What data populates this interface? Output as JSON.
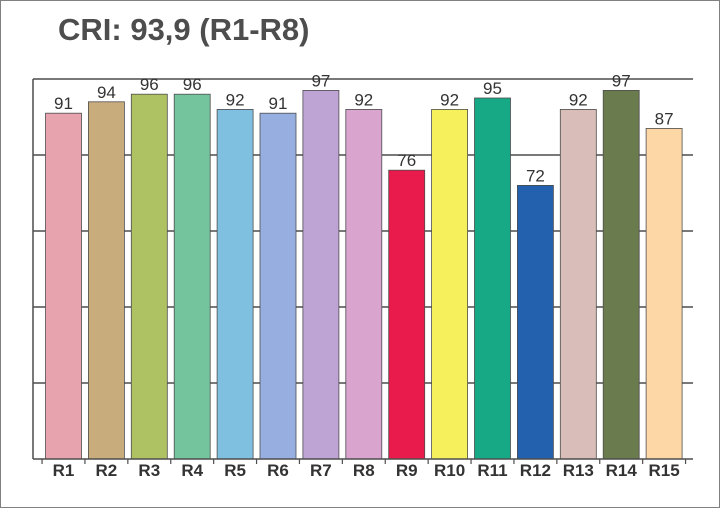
{
  "chart_data": {
    "type": "bar",
    "title": "CRI: 93,9 (R1-R8)",
    "xlabel": "",
    "ylabel": "",
    "ylim": [
      0,
      100
    ],
    "grid": true,
    "categories": [
      "R1",
      "R2",
      "R3",
      "R4",
      "R5",
      "R6",
      "R7",
      "R8",
      "R9",
      "R10",
      "R11",
      "R12",
      "R13",
      "R14",
      "R15"
    ],
    "values": [
      91,
      94,
      96,
      96,
      92,
      91,
      97,
      92,
      76,
      92,
      95,
      72,
      92,
      97,
      87
    ],
    "colors": [
      "#e8a4ae",
      "#c9ac7c",
      "#aec264",
      "#74c49e",
      "#7fbfe0",
      "#97afe0",
      "#bea4d4",
      "#d9a4cd",
      "#e91a4c",
      "#f6f05c",
      "#17a986",
      "#2360ad",
      "#d8bdb8",
      "#6a7b4d",
      "#fdd7a6"
    ],
    "frame_color": "#808080",
    "grid_color": "#4d4d4d"
  }
}
